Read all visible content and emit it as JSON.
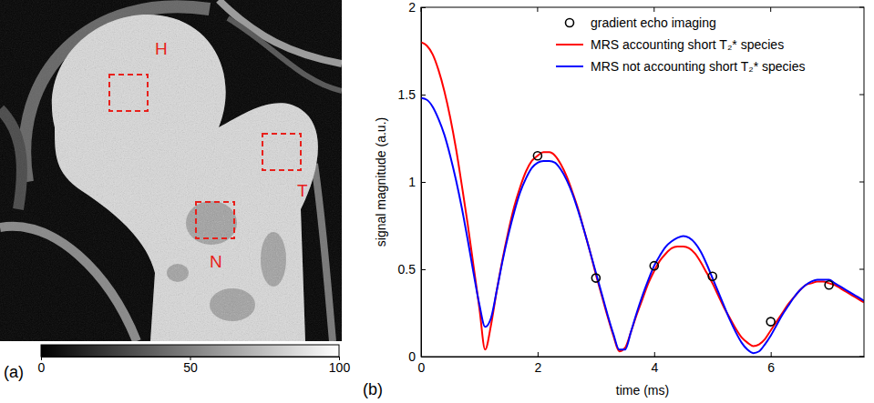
{
  "chart_data": [
    {
      "type": "image",
      "panel_label": "(a)",
      "region_labels": [
        "H",
        "T",
        "N"
      ],
      "colorbar": {
        "range": [
          0,
          100
        ],
        "ticks": [
          0,
          50,
          100
        ]
      }
    },
    {
      "type": "line",
      "panel_label": "(b)",
      "x_label": "time (ms)",
      "y_label": "signal magnitude (a.u.)",
      "xlim": [
        0,
        7.6
      ],
      "ylim": [
        0,
        2
      ],
      "xticks": [
        0,
        2,
        4,
        6
      ],
      "yticks": [
        0,
        0.5,
        1,
        1.5,
        2
      ],
      "legend": "upper right",
      "series": [
        {
          "name": "gradient echo imaging",
          "type": "scatter",
          "marker": "circle",
          "color": "#000000",
          "x": [
            2,
            3,
            4,
            5,
            6,
            7
          ],
          "values": [
            1.15,
            0.45,
            0.52,
            0.46,
            0.2,
            0.41
          ]
        },
        {
          "name": "MRS accounting short T₂* species",
          "type": "line",
          "line_style": "solid",
          "color": "#ff0000",
          "x": [
            0,
            0.1,
            0.2,
            0.3,
            0.4,
            0.5,
            0.6,
            0.7,
            0.8,
            0.9,
            1.0,
            1.1,
            1.2,
            1.3,
            1.4,
            1.5,
            1.6,
            1.7,
            1.8,
            1.9,
            2.0,
            2.1,
            2.2,
            2.3,
            2.4,
            2.5,
            2.6,
            2.7,
            2.8,
            2.9,
            3.0,
            3.1,
            3.2,
            3.3,
            3.4,
            3.5,
            3.6,
            3.7,
            3.8,
            3.9,
            4.0,
            4.1,
            4.2,
            4.3,
            4.4,
            4.5,
            4.6,
            4.7,
            4.8,
            4.9,
            5.0,
            5.1,
            5.2,
            5.3,
            5.4,
            5.5,
            5.6,
            5.7,
            5.8,
            5.9,
            6.0,
            6.1,
            6.2,
            6.3,
            6.4,
            6.5,
            6.6,
            6.7,
            6.8,
            6.9,
            7.0,
            7.1,
            7.2,
            7.3,
            7.4,
            7.5,
            7.6
          ],
          "values": [
            1.8,
            1.78,
            1.73,
            1.64,
            1.52,
            1.37,
            1.19,
            0.98,
            0.76,
            0.52,
            0.28,
            0.04,
            0.18,
            0.38,
            0.56,
            0.72,
            0.86,
            0.97,
            1.06,
            1.12,
            1.15,
            1.17,
            1.17,
            1.15,
            1.1,
            1.03,
            0.94,
            0.84,
            0.72,
            0.6,
            0.47,
            0.35,
            0.23,
            0.12,
            0.03,
            0.05,
            0.14,
            0.24,
            0.33,
            0.42,
            0.49,
            0.55,
            0.59,
            0.62,
            0.63,
            0.63,
            0.62,
            0.59,
            0.54,
            0.48,
            0.42,
            0.35,
            0.28,
            0.22,
            0.16,
            0.11,
            0.08,
            0.06,
            0.07,
            0.1,
            0.15,
            0.2,
            0.25,
            0.3,
            0.34,
            0.38,
            0.41,
            0.42,
            0.43,
            0.43,
            0.42,
            0.41,
            0.39,
            0.37,
            0.35,
            0.33,
            0.31
          ]
        },
        {
          "name": "MRS not accounting short T₂* species",
          "type": "line",
          "line_style": "solid",
          "color": "#0000ff",
          "x": [
            0,
            0.1,
            0.2,
            0.3,
            0.4,
            0.5,
            0.6,
            0.7,
            0.8,
            0.9,
            1.0,
            1.1,
            1.2,
            1.3,
            1.4,
            1.5,
            1.6,
            1.7,
            1.8,
            1.9,
            2.0,
            2.1,
            2.2,
            2.3,
            2.4,
            2.5,
            2.6,
            2.7,
            2.8,
            2.9,
            3.0,
            3.1,
            3.2,
            3.3,
            3.4,
            3.5,
            3.6,
            3.7,
            3.8,
            3.9,
            4.0,
            4.1,
            4.2,
            4.3,
            4.4,
            4.5,
            4.6,
            4.7,
            4.8,
            4.9,
            5.0,
            5.1,
            5.2,
            5.3,
            5.4,
            5.5,
            5.6,
            5.7,
            5.8,
            5.9,
            6.0,
            6.1,
            6.2,
            6.3,
            6.4,
            6.5,
            6.6,
            6.7,
            6.8,
            6.9,
            7.0,
            7.1,
            7.2,
            7.3,
            7.4,
            7.5,
            7.6
          ],
          "values": [
            1.48,
            1.47,
            1.43,
            1.36,
            1.27,
            1.15,
            1.01,
            0.85,
            0.67,
            0.48,
            0.3,
            0.17,
            0.22,
            0.38,
            0.55,
            0.7,
            0.83,
            0.94,
            1.02,
            1.08,
            1.11,
            1.12,
            1.12,
            1.11,
            1.07,
            1.01,
            0.93,
            0.83,
            0.72,
            0.6,
            0.48,
            0.36,
            0.24,
            0.13,
            0.04,
            0.04,
            0.14,
            0.25,
            0.35,
            0.44,
            0.52,
            0.58,
            0.63,
            0.66,
            0.68,
            0.69,
            0.68,
            0.65,
            0.6,
            0.53,
            0.45,
            0.37,
            0.29,
            0.21,
            0.14,
            0.08,
            0.04,
            0.02,
            0.03,
            0.07,
            0.12,
            0.18,
            0.24,
            0.29,
            0.34,
            0.38,
            0.41,
            0.43,
            0.44,
            0.44,
            0.44,
            0.42,
            0.4,
            0.38,
            0.36,
            0.34,
            0.32
          ]
        }
      ]
    }
  ]
}
